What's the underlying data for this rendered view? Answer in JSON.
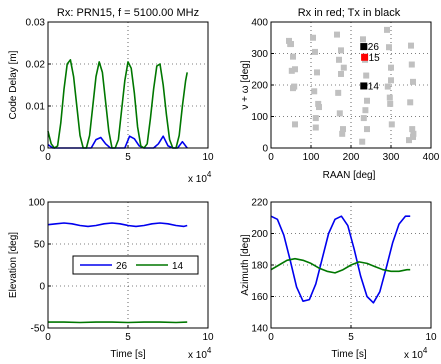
{
  "chart_data": [
    {
      "id": "code-delay",
      "type": "line",
      "title": "Rx: PRN15, f = 5100.00 MHz",
      "xlabel": "",
      "ylabel": "Code Delay [m]",
      "x_exponent_label": "x 10",
      "x_exponent_power": "4",
      "xlim": [
        0,
        10
      ],
      "ylim": [
        0,
        0.03
      ],
      "xticks": [
        0,
        5,
        10
      ],
      "yticks": [
        0,
        0.01,
        0.02,
        0.03
      ],
      "ytick_labels": [
        "0",
        "0.01",
        "0.02",
        "0.03"
      ],
      "grid": true,
      "series": [
        {
          "color": "#0000ee",
          "x": [
            0,
            0.3,
            0.6,
            0.9,
            1.2,
            1.5,
            1.8,
            2.1,
            2.4,
            2.7,
            3.0,
            3.3,
            3.6,
            3.9,
            4.2,
            4.5,
            4.8,
            5.1,
            5.4,
            5.7,
            6.0,
            6.3,
            6.6,
            6.9,
            7.2,
            7.5,
            7.8,
            8.1,
            8.4,
            8.7
          ],
          "y": [
            0.0008,
            0,
            0,
            0,
            0,
            0,
            0,
            0,
            0,
            0,
            0.002,
            0.0025,
            0.001,
            0,
            0,
            0,
            0,
            0.0028,
            0.0022,
            0.0005,
            0,
            0,
            0,
            0.001,
            0.0028,
            0.0005,
            0,
            0,
            0.0015,
            0
          ]
        },
        {
          "color": "#007700",
          "x": [
            0,
            0.2,
            0.4,
            0.6,
            0.8,
            1.0,
            1.2,
            1.4,
            1.6,
            1.8,
            2.0,
            2.2,
            2.4,
            2.6,
            2.8,
            3.0,
            3.2,
            3.4,
            3.6,
            3.8,
            4.0,
            4.2,
            4.4,
            4.6,
            4.8,
            5.0,
            5.2,
            5.4,
            5.6,
            5.8,
            6.0,
            6.2,
            6.4,
            6.6,
            6.8,
            7.0,
            7.2,
            7.4,
            7.6,
            7.8,
            8.0,
            8.2,
            8.4,
            8.6,
            8.7
          ],
          "y": [
            0.004,
            0.001,
            0,
            0.0005,
            0.006,
            0.014,
            0.02,
            0.021,
            0.017,
            0.01,
            0.003,
            0,
            0,
            0.003,
            0.01,
            0.017,
            0.0205,
            0.018,
            0.011,
            0.004,
            0,
            0,
            0.002,
            0.009,
            0.016,
            0.0205,
            0.019,
            0.013,
            0.005,
            0.0005,
            0,
            0.001,
            0.007,
            0.014,
            0.0195,
            0.02,
            0.015,
            0.008,
            0.002,
            0,
            0,
            0.003,
            0.01,
            0.016,
            0.018
          ]
        }
      ]
    },
    {
      "id": "raan-scatter",
      "type": "scatter",
      "title": "Rx in red; Tx in black",
      "xlabel": "RAAN [deg]",
      "ylabel": "ν + ω [deg]",
      "xlim": [
        0,
        400
      ],
      "ylim": [
        0,
        400
      ],
      "xticks": [
        0,
        100,
        200,
        300,
        400
      ],
      "yticks": [
        0,
        100,
        200,
        300,
        400
      ],
      "grid": true,
      "gray_points": {
        "color": "#c0c0c0",
        "x": [
          45,
          48,
          55,
          52,
          58,
          60,
          50,
          105,
          110,
          115,
          108,
          120,
          112,
          165,
          170,
          175,
          168,
          172,
          180,
          178,
          230,
          235,
          238,
          232,
          240,
          228,
          290,
          295,
          300,
          292,
          298,
          302,
          350,
          352,
          355,
          348,
          356,
          345,
          60,
          118,
          175,
          240,
          300,
          355,
          55,
          112,
          182,
          236,
          297,
          353
        ],
        "y": [
          340,
          330,
          290,
          245,
          195,
          75,
          330,
          350,
          305,
          240,
          180,
          130,
          65,
          360,
          280,
          235,
          175,
          110,
          60,
          45,
          345,
          280,
          230,
          95,
          60,
          20,
          375,
          320,
          255,
          195,
          140,
          75,
          325,
          265,
          210,
          145,
          45,
          25,
          250,
          140,
          310,
          150,
          215,
          35,
          190,
          95,
          255,
          120,
          160,
          60
        ]
      },
      "tx_points": {
        "color": "#000000",
        "x": [
          232,
          232
        ],
        "y": [
          322,
          197
        ],
        "labels": [
          "26",
          "14"
        ]
      },
      "rx_points": {
        "color": "#ff0000",
        "x": [
          234
        ],
        "y": [
          288
        ],
        "labels": [
          "15"
        ]
      }
    },
    {
      "id": "elevation",
      "type": "line",
      "xlabel": "Time [s]",
      "ylabel": "Elevation [deg]",
      "x_exponent_label": "x 10",
      "x_exponent_power": "4",
      "xlim": [
        0,
        10
      ],
      "ylim": [
        -50,
        100
      ],
      "xticks": [
        0,
        5,
        10
      ],
      "yticks": [
        -50,
        0,
        50,
        100
      ],
      "grid": true,
      "legend": {
        "placement": "center",
        "entries": [
          {
            "name": "26",
            "color": "#0000ee"
          },
          {
            "name": "14",
            "color": "#007700"
          }
        ]
      },
      "series": [
        {
          "name": "26",
          "color": "#0000ee",
          "x": [
            0,
            0.5,
            1.0,
            1.5,
            2.0,
            2.5,
            3.0,
            3.5,
            4.0,
            4.5,
            5.0,
            5.5,
            6.0,
            6.5,
            7.0,
            7.5,
            8.0,
            8.5,
            8.7
          ],
          "y": [
            73,
            74,
            75,
            74,
            72,
            71,
            72,
            74,
            75,
            74,
            72,
            71,
            72,
            74,
            75,
            74,
            72,
            71,
            72
          ]
        },
        {
          "name": "14",
          "color": "#007700",
          "x": [
            0,
            1,
            2,
            3,
            4,
            5,
            6,
            7,
            8,
            8.7
          ],
          "y": [
            -43,
            -43,
            -43.5,
            -43,
            -43,
            -43.5,
            -43,
            -43,
            -43.5,
            -43
          ]
        }
      ]
    },
    {
      "id": "azimuth",
      "type": "line",
      "xlabel": "Time [s]",
      "ylabel": "Azimuth [deg]",
      "x_exponent_label": "x 10",
      "x_exponent_power": "4",
      "xlim": [
        0,
        10
      ],
      "ylim": [
        140,
        220
      ],
      "xticks": [
        0,
        5,
        10
      ],
      "yticks": [
        140,
        160,
        180,
        200,
        220
      ],
      "grid": true,
      "series": [
        {
          "name": "26",
          "color": "#0000ee",
          "x": [
            0,
            0.4,
            0.8,
            1.2,
            1.6,
            2.0,
            2.4,
            2.8,
            3.2,
            3.6,
            4.0,
            4.4,
            4.8,
            5.2,
            5.6,
            6.0,
            6.4,
            6.8,
            7.2,
            7.6,
            8.0,
            8.4,
            8.7
          ],
          "y": [
            211,
            209,
            199,
            183,
            166,
            157,
            158,
            168,
            184,
            200,
            209,
            211,
            205,
            190,
            173,
            160,
            156,
            163,
            178,
            194,
            206,
            211,
            211
          ]
        },
        {
          "name": "14",
          "color": "#007700",
          "x": [
            0,
            0.5,
            1.0,
            1.5,
            2.0,
            2.5,
            3.0,
            3.5,
            4.0,
            4.5,
            5.0,
            5.5,
            6.0,
            6.5,
            7.0,
            7.5,
            8.0,
            8.5,
            8.7
          ],
          "y": [
            177,
            180,
            183,
            184,
            183,
            181,
            178,
            176,
            175,
            177,
            180,
            182,
            181,
            179,
            177,
            176,
            176,
            177,
            177
          ]
        }
      ]
    }
  ]
}
